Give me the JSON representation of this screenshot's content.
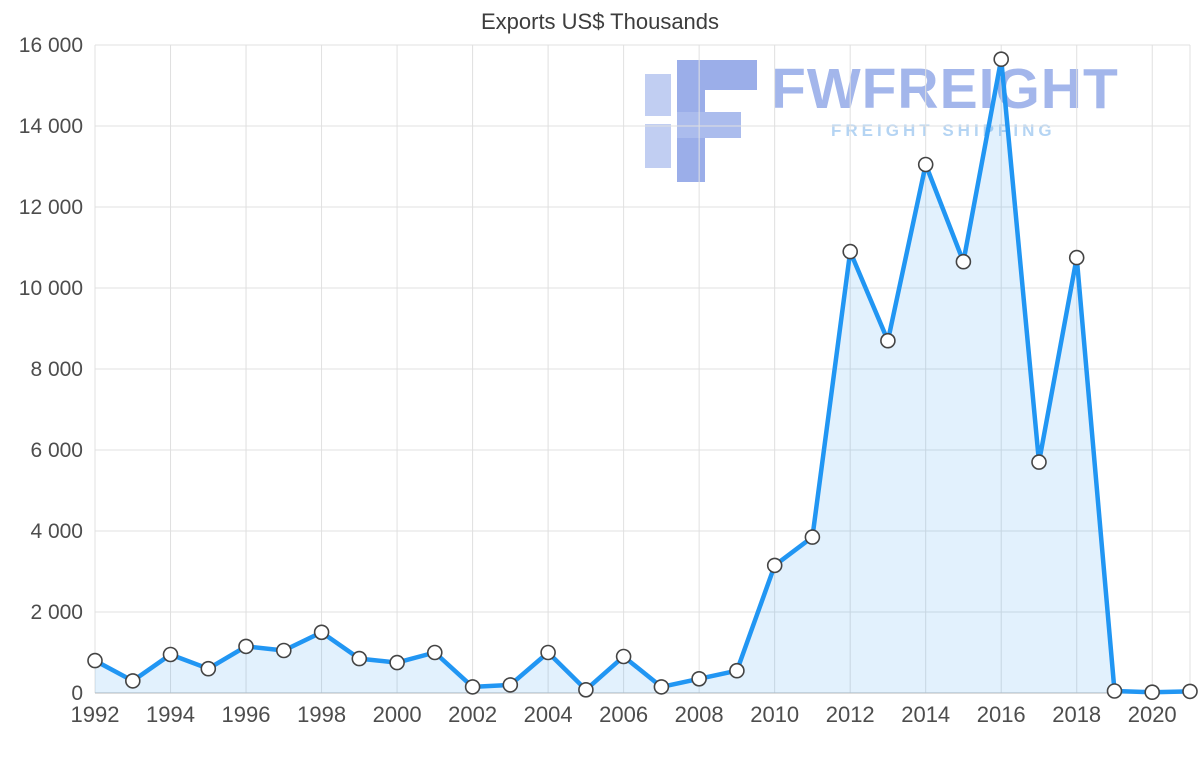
{
  "title": "Exports US$ Thousands",
  "watermark": {
    "brand": "FWFREIGHT",
    "tagline": "FREIGHT SHIPPING"
  },
  "chart_data": {
    "type": "area",
    "title": "Exports US$ Thousands",
    "xlabel": "",
    "ylabel": "",
    "x": [
      1992,
      1993,
      1994,
      1995,
      1996,
      1997,
      1998,
      1999,
      2000,
      2001,
      2002,
      2003,
      2004,
      2005,
      2006,
      2007,
      2008,
      2009,
      2010,
      2011,
      2012,
      2013,
      2014,
      2015,
      2016,
      2017,
      2018,
      2019,
      2020,
      2021
    ],
    "series": [
      {
        "name": "Exports US$ Thousands",
        "values": [
          800,
          300,
          950,
          600,
          1150,
          1050,
          1500,
          850,
          750,
          1000,
          150,
          200,
          1000,
          80,
          900,
          150,
          350,
          550,
          3150,
          3850,
          10900,
          8700,
          13050,
          10650,
          15650,
          5700,
          10750,
          50,
          20,
          40
        ]
      }
    ],
    "ylim": [
      0,
      16000
    ],
    "y_ticks": [
      0,
      2000,
      4000,
      6000,
      8000,
      10000,
      12000,
      14000,
      16000
    ],
    "y_tick_labels": [
      "0",
      "2 000",
      "4 000",
      "6 000",
      "8 000",
      "10 000",
      "12 000",
      "14 000",
      "16 000"
    ],
    "x_ticks": [
      1992,
      1994,
      1996,
      1998,
      2000,
      2002,
      2004,
      2006,
      2008,
      2010,
      2012,
      2014,
      2016,
      2018,
      2020
    ],
    "x_tick_labels": [
      "1992",
      "1994",
      "1996",
      "1998",
      "2000",
      "2002",
      "2004",
      "2006",
      "2008",
      "2010",
      "2012",
      "2014",
      "2016",
      "2018",
      "2020"
    ],
    "grid": true,
    "legend": "none",
    "marker_style": "open-circle",
    "colors": {
      "line": "#2196f3",
      "fill": "#2196f3",
      "fill_opacity": 0.13,
      "marker_fill": "#ffffff",
      "marker_stroke": "#444444",
      "grid": "#e0e0e0",
      "axis": "#c6c6c6",
      "tick_text": "#4d4d4d",
      "title_text": "#3d3d3d",
      "watermark_brand": "#93aae8",
      "watermark_tagline": "#a8cdf2"
    }
  }
}
